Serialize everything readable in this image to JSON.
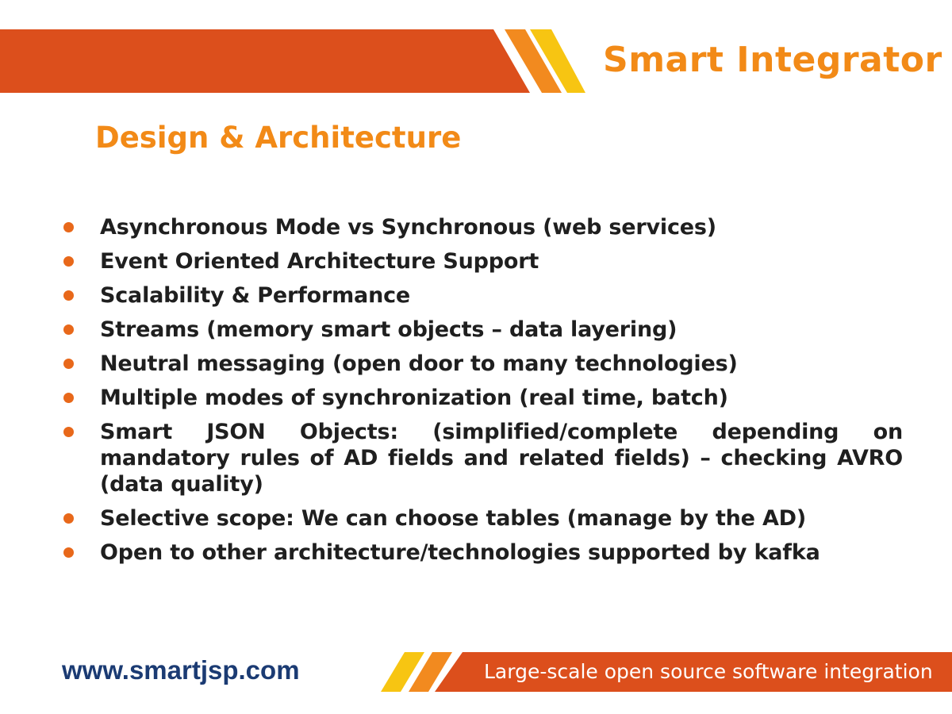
{
  "header": {
    "brand": "Smart Integrator",
    "title": "Design & Architecture"
  },
  "bullets": [
    "Asynchronous Mode vs Synchronous (web services)",
    "Event Oriented Architecture Support",
    "Scalability & Performance",
    "Streams (memory smart objects – data layering)",
    "Neutral messaging (open door to many technologies)",
    "Multiple modes of synchronization (real time, batch)",
    "Smart JSON Objects: (simplified/complete depending on mandatory rules of AD fields and related fields) – checking AVRO (data quality)",
    "Selective scope: We can choose tables (manage by the AD)",
    "Open to other architecture/technologies supported by kafka"
  ],
  "footer": {
    "url": "www.smartjsp.com",
    "tagline": "Large-scale open source software integration"
  },
  "colors": {
    "red": "#dc4f1c",
    "orange": "#f28a1f",
    "yellow": "#f7c512",
    "bullet": "#e8681a"
  }
}
